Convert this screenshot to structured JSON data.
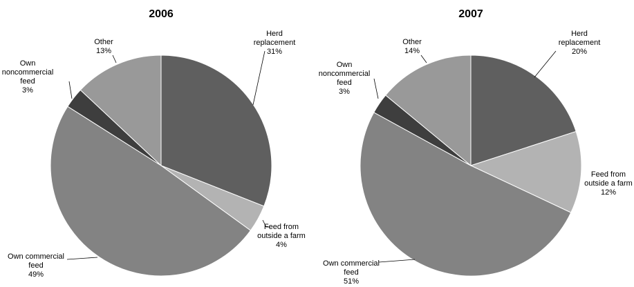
{
  "chart_data": [
    {
      "type": "pie",
      "title": "2006",
      "slices": [
        {
          "label": [
            "Herd",
            "replacement"
          ],
          "value": 31,
          "value_label": "31%",
          "color": "#5f5f5f"
        },
        {
          "label": [
            "Feed from",
            "outside a farm"
          ],
          "value": 4,
          "value_label": "4%",
          "color": "#b3b3b3"
        },
        {
          "label": [
            "Own commercial",
            "feed"
          ],
          "value": 49,
          "value_label": "49%",
          "color": "#838383"
        },
        {
          "label": [
            "Own",
            "noncommercial",
            "feed"
          ],
          "value": 3,
          "value_label": "3%",
          "color": "#3e3e3e"
        },
        {
          "label": [
            "Other"
          ],
          "value": 13,
          "value_label": "13%",
          "color": "#999999"
        }
      ]
    },
    {
      "type": "pie",
      "title": "2007",
      "slices": [
        {
          "label": [
            "Herd",
            "replacement"
          ],
          "value": 20,
          "value_label": "20%",
          "color": "#5f5f5f"
        },
        {
          "label": [
            "Feed from",
            "outside a farm"
          ],
          "value": 12,
          "value_label": "12%",
          "color": "#b3b3b3"
        },
        {
          "label": [
            "Own commercial",
            "feed"
          ],
          "value": 51,
          "value_label": "51%",
          "color": "#838383"
        },
        {
          "label": [
            "Own",
            "noncommercial",
            "feed"
          ],
          "value": 3,
          "value_label": "3%",
          "color": "#3e3e3e"
        },
        {
          "label": [
            "Other"
          ],
          "value": 14,
          "value_label": "14%",
          "color": "#999999"
        }
      ]
    }
  ]
}
